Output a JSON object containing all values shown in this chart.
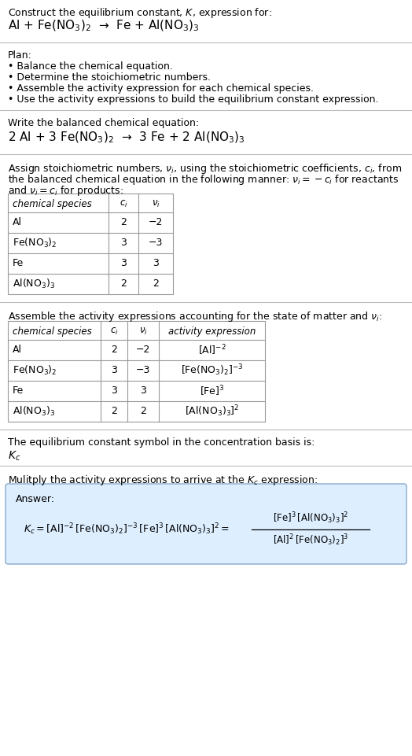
{
  "title_line1": "Construct the equilibrium constant, $K$, expression for:",
  "title_line2": "Al + Fe(NO$_3$)$_2$  →  Fe + Al(NO$_3$)$_3$",
  "plan_header": "Plan:",
  "plan_bullets": [
    "• Balance the chemical equation.",
    "• Determine the stoichiometric numbers.",
    "• Assemble the activity expression for each chemical species.",
    "• Use the activity expressions to build the equilibrium constant expression."
  ],
  "balanced_header": "Write the balanced chemical equation:",
  "balanced_eq": "2 Al + 3 Fe(NO$_3$)$_2$  →  3 Fe + 2 Al(NO$_3$)$_3$",
  "stoich_header1": "Assign stoichiometric numbers, $\\nu_i$, using the stoichiometric coefficients, $c_i$, from",
  "stoich_header2": "the balanced chemical equation in the following manner: $\\nu_i = -c_i$ for reactants",
  "stoich_header3": "and $\\nu_i = c_i$ for products:",
  "table1_cols": [
    "chemical species",
    "$c_i$",
    "$\\nu_i$"
  ],
  "table1_rows": [
    [
      "Al",
      "2",
      "−2"
    ],
    [
      "Fe(NO$_3$)$_2$",
      "3",
      "−3"
    ],
    [
      "Fe",
      "3",
      "3"
    ],
    [
      "Al(NO$_3$)$_3$",
      "2",
      "2"
    ]
  ],
  "activity_header": "Assemble the activity expressions accounting for the state of matter and $\\nu_i$:",
  "table2_cols": [
    "chemical species",
    "$c_i$",
    "$\\nu_i$",
    "activity expression"
  ],
  "table2_rows": [
    [
      "Al",
      "2",
      "−2",
      "[Al]$^{-2}$"
    ],
    [
      "Fe(NO$_3$)$_2$",
      "3",
      "−3",
      "[Fe(NO$_3$)$_2$]$^{-3}$"
    ],
    [
      "Fe",
      "3",
      "3",
      "[Fe]$^3$"
    ],
    [
      "Al(NO$_3$)$_3$",
      "2",
      "2",
      "[Al(NO$_3$)$_3$]$^2$"
    ]
  ],
  "kc_text": "The equilibrium constant symbol in the concentration basis is:",
  "kc_symbol": "$K_c$",
  "multiply_text": "Mulitply the activity expressions to arrive at the $K_c$ expression:",
  "answer_label": "Answer:",
  "bg_color": "#ffffff",
  "table_border_color": "#999999",
  "answer_box_color": "#ddeeff",
  "answer_box_border": "#88aacc",
  "text_color": "#000000",
  "font_size": 9.0,
  "separator_color": "#bbbbbb"
}
